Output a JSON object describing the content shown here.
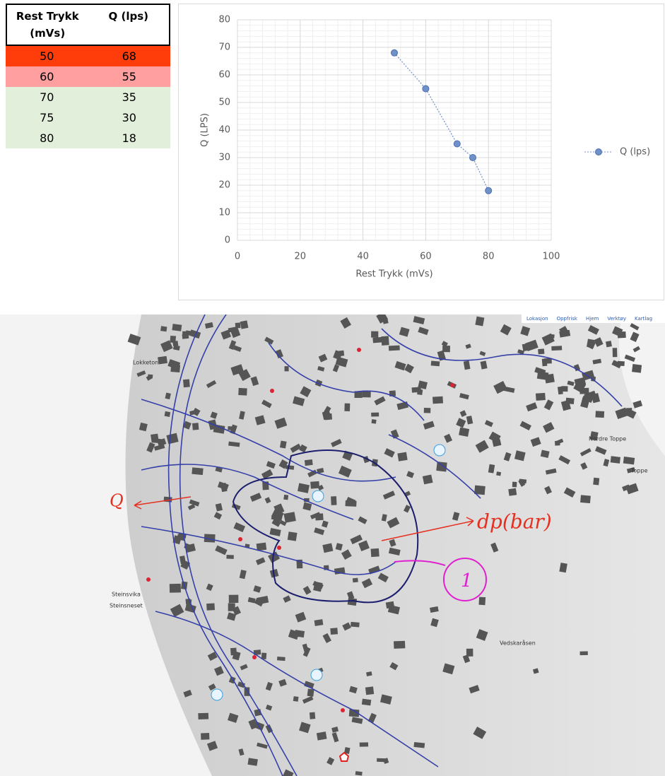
{
  "table": {
    "header": [
      "Rest Trykk (mVs)",
      "Q (lps)"
    ],
    "rows": [
      [
        50,
        68
      ],
      [
        60,
        55
      ],
      [
        70,
        35
      ],
      [
        75,
        30
      ],
      [
        80,
        18
      ]
    ],
    "row_colors": [
      "#ff3d0a",
      "#ff9f9f",
      "#e2efda",
      "#e2efda",
      "#e2efda"
    ]
  },
  "chart_data": {
    "type": "scatter",
    "x_label": "Rest Trykk (mVs)",
    "y_label": "Q (LPS)",
    "x": [
      50,
      60,
      70,
      75,
      80
    ],
    "series": [
      {
        "name": "Q (lps)",
        "color": "#7090c8",
        "values": [
          68,
          55,
          35,
          30,
          18
        ]
      }
    ],
    "xlim": [
      0,
      100
    ],
    "xticks": [
      0,
      20,
      40,
      60,
      80,
      100
    ],
    "ylim": [
      0,
      80
    ],
    "yticks": [
      0,
      10,
      20,
      30,
      40,
      50,
      60,
      70,
      80
    ],
    "grid": true,
    "minor_grid": true,
    "legend": "right"
  },
  "map": {
    "toolbar": [
      "Lokasjon",
      "Oppfrisk",
      "Hjem",
      "Verktøy",
      "Kartlag"
    ],
    "places": [
      "Lokketon",
      "Nordre Toppe",
      "Toppe",
      "Steinsvika",
      "Steinsneset",
      "Vedskaråsen"
    ],
    "annotations": [
      "Q",
      "dp(bar)",
      "1"
    ]
  }
}
